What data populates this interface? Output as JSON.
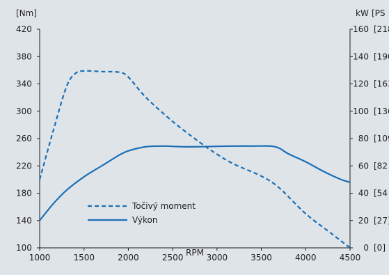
{
  "chart_data": {
    "type": "line",
    "xlabel": "RPM",
    "x_ticks": [
      1000,
      1500,
      2000,
      2500,
      3000,
      3500,
      4000,
      4500
    ],
    "xlim": [
      1000,
      4500
    ],
    "left_axis": {
      "label": "[Nm]",
      "ylim": [
        100,
        420
      ],
      "ticks": [
        100,
        140,
        180,
        220,
        260,
        300,
        340,
        380,
        420
      ]
    },
    "right_axis": {
      "label_kw": "kW",
      "label_ps": "[PS",
      "ylim": [
        0,
        160
      ],
      "ticks": [
        0,
        20,
        40,
        60,
        80,
        100,
        120,
        140,
        160
      ],
      "ps_labels": [
        "[0]",
        "[27]",
        "[54",
        "[82",
        "[109",
        "[136",
        "[163",
        "[190",
        "[218"
      ]
    },
    "grid": false,
    "legend_position": "lower-left",
    "series": [
      {
        "name": "Točivý moment",
        "axis": "left",
        "style": "dashed",
        "color": "#1a6fb5",
        "x": [
          1000,
          1150,
          1300,
          1400,
          1500,
          1700,
          1900,
          2000,
          2200,
          2500,
          2800,
          3000,
          3200,
          3500,
          3700,
          4000,
          4300,
          4500
        ],
        "y": [
          200,
          270,
          335,
          355,
          359,
          358,
          357,
          350,
          320,
          285,
          255,
          237,
          222,
          205,
          188,
          150,
          120,
          100
        ]
      },
      {
        "name": "Výkon",
        "axis": "right",
        "style": "solid",
        "color": "#1a6fb5",
        "x": [
          1000,
          1150,
          1300,
          1500,
          1700,
          1900,
          2000,
          2200,
          2400,
          2600,
          2800,
          3000,
          3200,
          3400,
          3600,
          3700,
          3800,
          4000,
          4200,
          4400,
          4500
        ],
        "y": [
          20,
          32,
          42,
          52,
          60,
          68,
          71,
          74,
          74.5,
          74,
          74,
          74.3,
          74.5,
          74.5,
          74.5,
          73,
          69,
          63,
          56,
          50,
          48
        ]
      }
    ]
  }
}
